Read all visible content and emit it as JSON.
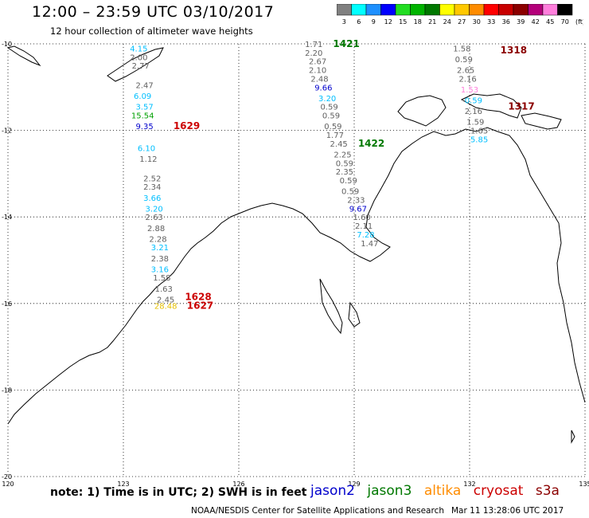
{
  "header": {
    "title": "12:00 – 23:59 UTC 03/10/2017",
    "subtitle": "12 hour collection of altimeter wave heights"
  },
  "colorbar": {
    "unit": "(ft)",
    "ticks": [
      "3",
      "6",
      "9",
      "12",
      "15",
      "18",
      "21",
      "24",
      "27",
      "30",
      "33",
      "36",
      "39",
      "42",
      "45",
      "70"
    ],
    "colors": [
      "#808080",
      "#00ffff",
      "#1e90ff",
      "#0000ff",
      "#22dd22",
      "#00b400",
      "#007800",
      "#ffff00",
      "#ffc800",
      "#ff8c00",
      "#ff0000",
      "#c80000",
      "#8b0000",
      "#b4007a",
      "#ff7fdc",
      "#000000"
    ]
  },
  "map": {
    "lon_min": 120,
    "lon_max": 135,
    "lat_min": -20,
    "lat_max": -10,
    "x_ticks": [
      "120",
      "123",
      "126",
      "129",
      "132",
      "135"
    ],
    "y_ticks": [
      "-10",
      "-12",
      "-14",
      "-16",
      "-18",
      "-20"
    ],
    "sat_colors": {
      "jason2": "#0000cc",
      "jason3": "#007800",
      "altika": "#ff8c00",
      "cryosat": "#cc0000",
      "s3a": "#8b0000"
    },
    "points": [
      {
        "v": "4.15",
        "lon": 123.4,
        "lat": -10.1,
        "c": "#00bfff"
      },
      {
        "v": "2.00",
        "lon": 123.4,
        "lat": -10.3,
        "c": "#606060"
      },
      {
        "v": "2.77",
        "lon": 123.45,
        "lat": -10.5,
        "c": "#606060"
      },
      {
        "v": "2.47",
        "lon": 123.55,
        "lat": -10.95,
        "c": "#606060"
      },
      {
        "v": "6.09",
        "lon": 123.5,
        "lat": -11.2,
        "c": "#00bfff"
      },
      {
        "v": "3.57",
        "lon": 123.55,
        "lat": -11.45,
        "c": "#00bfff"
      },
      {
        "v": "15.54",
        "lon": 123.5,
        "lat": -11.65,
        "c": "#00a000"
      },
      {
        "v": "9.35",
        "lon": 123.55,
        "lat": -11.9,
        "c": "#0000cc"
      },
      {
        "v": "6.10",
        "lon": 123.6,
        "lat": -12.4,
        "c": "#00bfff"
      },
      {
        "v": "1.12",
        "lon": 123.65,
        "lat": -12.65,
        "c": "#606060"
      },
      {
        "v": "2.52",
        "lon": 123.75,
        "lat": -13.1,
        "c": "#606060"
      },
      {
        "v": "2.34",
        "lon": 123.75,
        "lat": -13.3,
        "c": "#606060"
      },
      {
        "v": "3.66",
        "lon": 123.75,
        "lat": -13.55,
        "c": "#00bfff"
      },
      {
        "v": "3.20",
        "lon": 123.8,
        "lat": -13.8,
        "c": "#00bfff"
      },
      {
        "v": "2.63",
        "lon": 123.8,
        "lat": -14.0,
        "c": "#606060"
      },
      {
        "v": "2.88",
        "lon": 123.85,
        "lat": -14.25,
        "c": "#606060"
      },
      {
        "v": "2.28",
        "lon": 123.9,
        "lat": -14.5,
        "c": "#606060"
      },
      {
        "v": "3.21",
        "lon": 123.95,
        "lat": -14.7,
        "c": "#00bfff"
      },
      {
        "v": "2.38",
        "lon": 123.95,
        "lat": -14.95,
        "c": "#606060"
      },
      {
        "v": "3.16",
        "lon": 123.95,
        "lat": -15.2,
        "c": "#00bfff"
      },
      {
        "v": "1.58",
        "lon": 124.0,
        "lat": -15.4,
        "c": "#606060"
      },
      {
        "v": "1.63",
        "lon": 124.05,
        "lat": -15.65,
        "c": "#606060"
      },
      {
        "v": "2.45",
        "lon": 124.1,
        "lat": -15.9,
        "c": "#606060"
      },
      {
        "v": "28.48",
        "lon": 124.1,
        "lat": -16.05,
        "c": "#e6c000"
      },
      {
        "v": "1.71",
        "lon": 127.95,
        "lat": -10.0,
        "c": "#606060"
      },
      {
        "v": "2.20",
        "lon": 127.95,
        "lat": -10.2,
        "c": "#606060"
      },
      {
        "v": "2.67",
        "lon": 128.05,
        "lat": -10.4,
        "c": "#606060"
      },
      {
        "v": "2.10",
        "lon": 128.05,
        "lat": -10.6,
        "c": "#606060"
      },
      {
        "v": "2.48",
        "lon": 128.1,
        "lat": -10.8,
        "c": "#606060"
      },
      {
        "v": "9.66",
        "lon": 128.2,
        "lat": -11.0,
        "c": "#0000cc"
      },
      {
        "v": "3.20",
        "lon": 128.3,
        "lat": -11.25,
        "c": "#00bfff"
      },
      {
        "v": "0.59",
        "lon": 128.35,
        "lat": -11.45,
        "c": "#606060"
      },
      {
        "v": "0.59",
        "lon": 128.4,
        "lat": -11.65,
        "c": "#606060"
      },
      {
        "v": "0.59",
        "lon": 128.45,
        "lat": -11.9,
        "c": "#606060"
      },
      {
        "v": "1.77",
        "lon": 128.5,
        "lat": -12.1,
        "c": "#606060"
      },
      {
        "v": "2.45",
        "lon": 128.6,
        "lat": -12.3,
        "c": "#606060"
      },
      {
        "v": "2.25",
        "lon": 128.7,
        "lat": -12.55,
        "c": "#606060"
      },
      {
        "v": "0.59",
        "lon": 128.75,
        "lat": -12.75,
        "c": "#606060"
      },
      {
        "v": "2.35",
        "lon": 128.75,
        "lat": -12.95,
        "c": "#606060"
      },
      {
        "v": "0.59",
        "lon": 128.85,
        "lat": -13.15,
        "c": "#606060"
      },
      {
        "v": "0.59",
        "lon": 128.9,
        "lat": -13.4,
        "c": "#606060"
      },
      {
        "v": "2.33",
        "lon": 129.05,
        "lat": -13.6,
        "c": "#606060"
      },
      {
        "v": "9.67",
        "lon": 129.1,
        "lat": -13.8,
        "c": "#0000cc"
      },
      {
        "v": "1.60",
        "lon": 129.2,
        "lat": -14.0,
        "c": "#606060"
      },
      {
        "v": "2.11",
        "lon": 129.25,
        "lat": -14.2,
        "c": "#606060"
      },
      {
        "v": "7.28",
        "lon": 129.3,
        "lat": -14.4,
        "c": "#00bfff"
      },
      {
        "v": "1.47",
        "lon": 129.4,
        "lat": -14.6,
        "c": "#606060"
      },
      {
        "v": "1.58",
        "lon": 131.8,
        "lat": -10.1,
        "c": "#606060"
      },
      {
        "v": "0.59",
        "lon": 131.85,
        "lat": -10.35,
        "c": "#606060"
      },
      {
        "v": "2.65",
        "lon": 131.9,
        "lat": -10.6,
        "c": "#606060"
      },
      {
        "v": "2.16",
        "lon": 131.95,
        "lat": -10.8,
        "c": "#606060"
      },
      {
        "v": "1.53",
        "lon": 132.0,
        "lat": -11.05,
        "c": "#ff7fdc"
      },
      {
        "v": "0.59",
        "lon": 132.1,
        "lat": -11.3,
        "c": "#00bfff"
      },
      {
        "v": "2.16",
        "lon": 132.1,
        "lat": -11.55,
        "c": "#606060"
      },
      {
        "v": "1.59",
        "lon": 132.15,
        "lat": -11.8,
        "c": "#606060"
      },
      {
        "v": "1.65",
        "lon": 132.25,
        "lat": -12.0,
        "c": "#606060"
      },
      {
        "v": "5.85",
        "lon": 132.25,
        "lat": -12.2,
        "c": "#00bfff"
      }
    ],
    "tracks": [
      {
        "id": "1629",
        "lon": 124.3,
        "lat": -11.9,
        "c": "#cc0000"
      },
      {
        "id": "1628",
        "lon": 124.6,
        "lat": -15.85,
        "c": "#cc0000"
      },
      {
        "id": "1627",
        "lon": 124.65,
        "lat": -16.05,
        "c": "#cc0000"
      },
      {
        "id": "1421",
        "lon": 128.45,
        "lat": -10.0,
        "c": "#007800"
      },
      {
        "id": "1422",
        "lon": 129.1,
        "lat": -12.3,
        "c": "#007800"
      },
      {
        "id": "1318",
        "lon": 132.8,
        "lat": -10.15,
        "c": "#8b0000"
      },
      {
        "id": "1317",
        "lon": 133.0,
        "lat": -11.45,
        "c": "#8b0000"
      }
    ]
  },
  "footer": {
    "note": "note:  1) Time is in UTC;  2) SWH is in feet",
    "legend": [
      {
        "name": "jason2",
        "c": "#0000cc"
      },
      {
        "name": "jason3",
        "c": "#007800"
      },
      {
        "name": "altika",
        "c": "#ff8c00"
      },
      {
        "name": "cryosat",
        "c": "#cc0000"
      },
      {
        "name": "s3a",
        "c": "#8b0000"
      }
    ],
    "credit": "NOAA/NESDIS Center for Satellite Applications and Research",
    "timestamp": "Mar 11 13:28:06 UTC 2017"
  }
}
